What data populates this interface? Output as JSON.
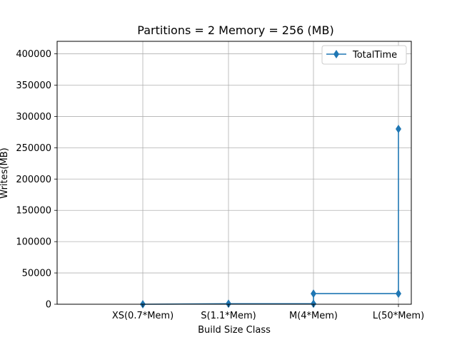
{
  "chart_data": {
    "type": "line",
    "title": "Partitions = 2 Memory = 256 (MB)",
    "xlabel": "Build Size Class",
    "ylabel": "Writes(MB)",
    "categories": [
      "XS(0.7*Mem)",
      "S(1.1*Mem)",
      "M(4*Mem)",
      "L(50*Mem)"
    ],
    "ylim": [
      0,
      420000
    ],
    "yticks": [
      0,
      50000,
      100000,
      150000,
      200000,
      250000,
      300000,
      350000,
      400000
    ],
    "ytick_labels": [
      "0",
      "50000",
      "100000",
      "150000",
      "200000",
      "250000",
      "300000",
      "350000",
      "400000"
    ],
    "grid": true,
    "legend_position": "top-right",
    "series": [
      {
        "name": "TotalTime",
        "color": "#1f77b4",
        "marker": "diamond",
        "points": [
          {
            "category": "XS(0.7*Mem)",
            "value": 0
          },
          {
            "category": "S(1.1*Mem)",
            "value": 800
          },
          {
            "category": "M(4*Mem)",
            "value": 800
          },
          {
            "category": "M(4*Mem)",
            "value": 17000
          },
          {
            "category": "L(50*Mem)",
            "value": 17000
          },
          {
            "category": "L(50*Mem)",
            "value": 280000
          }
        ]
      }
    ]
  }
}
